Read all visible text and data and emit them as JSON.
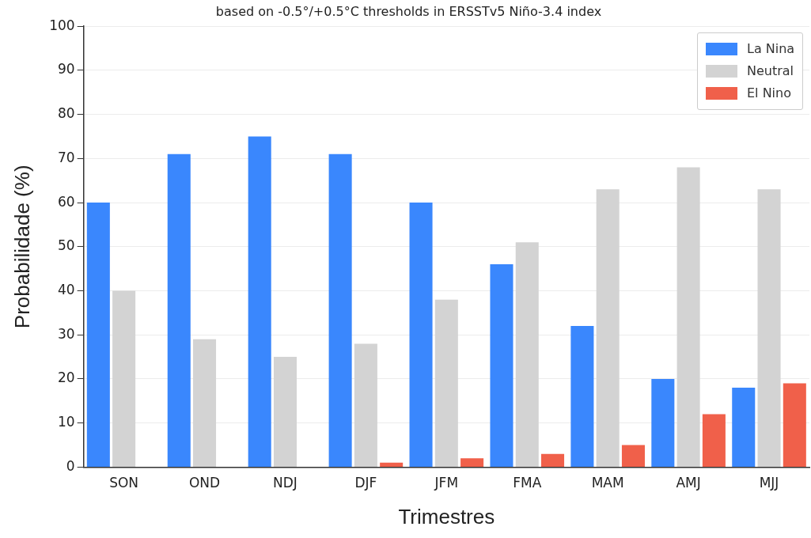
{
  "chart_data": {
    "type": "bar",
    "title": "based on -0.5°/+0.5°C thresholds in ERSSTv5 Niño-3.4 index",
    "xlabel": "Trimestres",
    "ylabel": "Probabilidade (%)",
    "categories": [
      "SON",
      "OND",
      "NDJ",
      "DJF",
      "JFM",
      "FMA",
      "MAM",
      "AMJ",
      "MJJ"
    ],
    "series": [
      {
        "name": "La Nina",
        "color": "#3a87fd",
        "values": [
          60,
          71,
          75,
          71,
          60,
          46,
          32,
          20,
          18
        ]
      },
      {
        "name": "Neutral",
        "color": "#d3d3d3",
        "values": [
          40,
          29,
          25,
          28,
          38,
          51,
          63,
          68,
          63
        ]
      },
      {
        "name": "El Nino",
        "color": "#f0604a",
        "values": [
          0,
          0,
          0,
          1,
          2,
          3,
          5,
          12,
          19
        ]
      }
    ],
    "ylim": [
      0,
      100
    ],
    "yticks": [
      0,
      10,
      20,
      30,
      40,
      50,
      60,
      70,
      80,
      90,
      100
    ],
    "grid": "y",
    "legend": "top right"
  }
}
